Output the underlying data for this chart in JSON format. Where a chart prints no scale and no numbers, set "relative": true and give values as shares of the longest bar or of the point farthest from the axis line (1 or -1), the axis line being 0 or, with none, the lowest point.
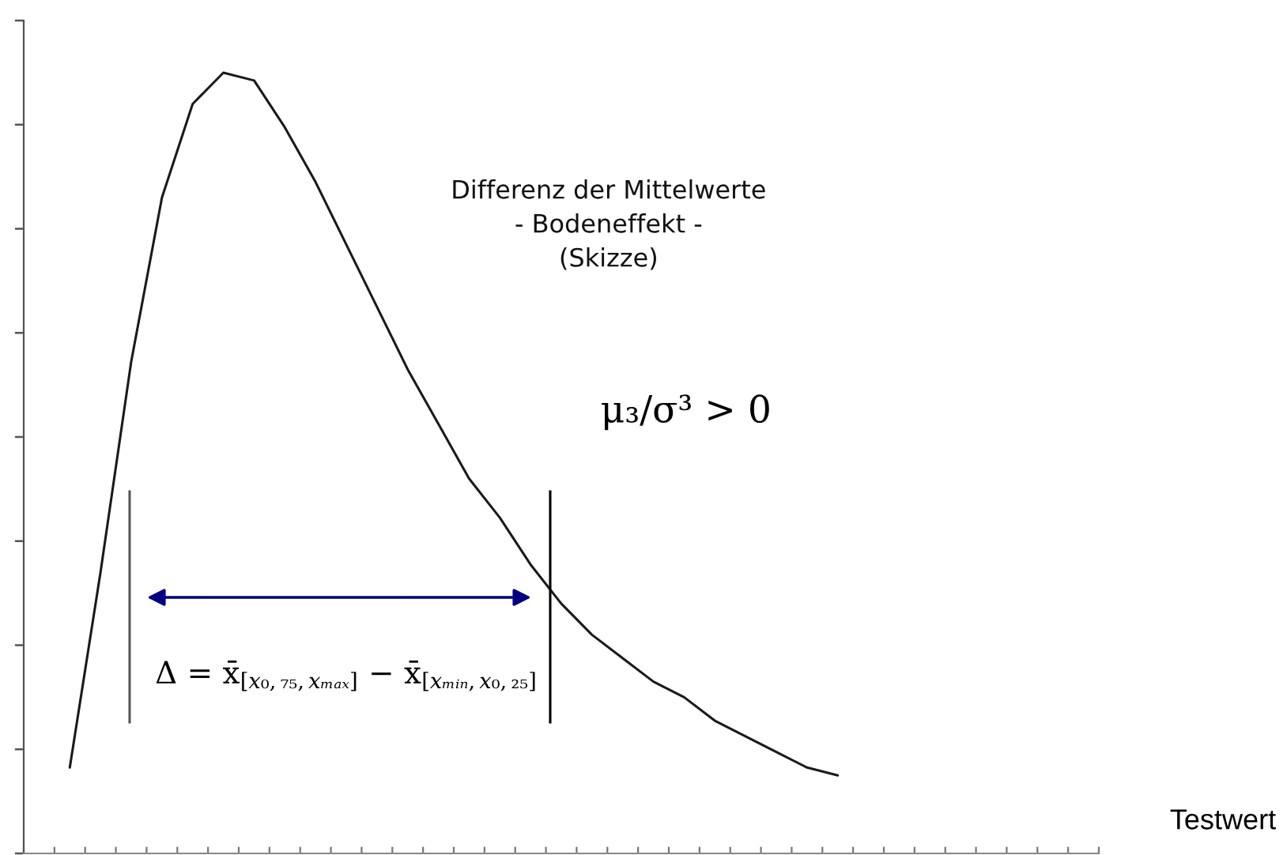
{
  "chart_data": {
    "type": "line",
    "relative": true,
    "title": "Differenz der Mittelwerte\n- Bodeneffekt -\n(Skizze)",
    "xlabel": "Testwert",
    "categories": [
      null,
      null,
      null,
      null,
      null,
      null,
      null,
      null,
      null,
      null,
      null,
      null,
      null,
      null,
      null,
      null,
      null,
      null,
      null,
      null,
      null,
      null,
      null,
      null,
      null,
      null,
      null,
      null,
      null,
      null,
      null,
      null,
      null,
      null,
      null
    ],
    "series": [
      {
        "color": "#1a1a1a",
        "values": [
          null,
          0.11,
          0.36,
          0.63,
          0.84,
          0.96,
          1,
          0.99,
          0.93,
          0.86,
          0.78,
          0.7,
          0.62,
          0.55,
          0.48,
          0.43,
          0.37,
          0.32,
          0.28,
          0.25,
          0.22,
          0.2,
          0.17,
          0.15,
          0.13,
          0.11,
          0.1,
          null,
          null,
          null,
          null,
          null,
          null,
          null,
          null
        ]
      }
    ],
    "annotations": [
      "μ₃/σ³ > 0",
      "Δ = x̄$_{[x₀,₇₅,xₘₐₓ]}$ − x̄$_{[xₘᵢₙ,x₀,₂₅]}$"
    ],
    "tick_labels": false,
    "line_style": "solid"
  }
}
